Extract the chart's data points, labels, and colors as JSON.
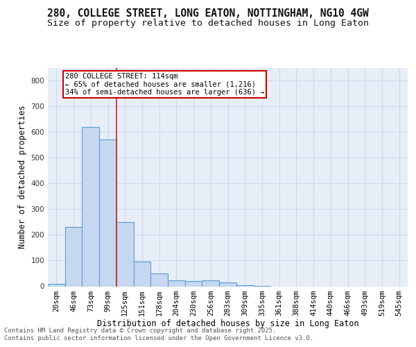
{
  "title_line1": "280, COLLEGE STREET, LONG EATON, NOTTINGHAM, NG10 4GW",
  "title_line2": "Size of property relative to detached houses in Long Eaton",
  "xlabel": "Distribution of detached houses by size in Long Eaton",
  "ylabel": "Number of detached properties",
  "categories": [
    "20sqm",
    "46sqm",
    "73sqm",
    "99sqm",
    "125sqm",
    "151sqm",
    "178sqm",
    "204sqm",
    "230sqm",
    "256sqm",
    "283sqm",
    "309sqm",
    "335sqm",
    "361sqm",
    "388sqm",
    "414sqm",
    "440sqm",
    "466sqm",
    "493sqm",
    "519sqm",
    "545sqm"
  ],
  "values": [
    10,
    232,
    618,
    570,
    250,
    97,
    50,
    22,
    20,
    22,
    14,
    5,
    2,
    0,
    0,
    0,
    0,
    0,
    0,
    0,
    0
  ],
  "bar_color": "#c5d8f0",
  "bar_edge_color": "#5b9bd5",
  "vline_color": "#cc2222",
  "annotation_text": "280 COLLEGE STREET: 114sqm\n← 65% of detached houses are smaller (1,216)\n34% of semi-detached houses are larger (636) →",
  "annotation_box_color": "#ffffff",
  "annotation_box_edge": "#cc0000",
  "ylim": [
    0,
    850
  ],
  "yticks": [
    0,
    100,
    200,
    300,
    400,
    500,
    600,
    700,
    800
  ],
  "grid_color": "#d0d8e8",
  "bg_color": "#e8eef8",
  "footer_line1": "Contains HM Land Registry data © Crown copyright and database right 2025.",
  "footer_line2": "Contains public sector information licensed under the Open Government Licence v3.0.",
  "title_fontsize": 10.5,
  "subtitle_fontsize": 9.5,
  "axis_label_fontsize": 8.5,
  "tick_fontsize": 7.5,
  "annotation_fontsize": 7.5,
  "footer_fontsize": 6.5
}
